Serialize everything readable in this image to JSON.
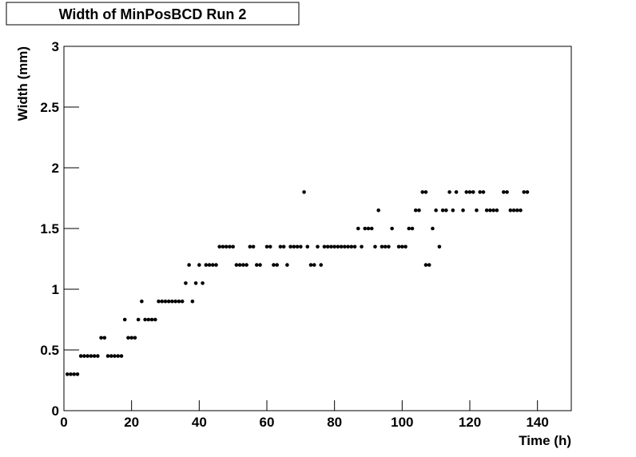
{
  "chart_data": {
    "type": "scatter",
    "title": "Width of MinPosBCD Run 2",
    "x_label": "Time (h)",
    "y_label": "Width (mm)",
    "xlim": [
      0,
      150
    ],
    "ylim": [
      0,
      3
    ],
    "xticks": [
      0,
      20,
      40,
      60,
      80,
      100,
      120,
      140
    ],
    "yticks": [
      0,
      0.5,
      1,
      1.5,
      2,
      2.5,
      3
    ],
    "color": "#000000",
    "x": [
      1,
      2,
      3,
      4,
      5,
      6,
      7,
      8,
      9,
      10,
      13,
      14,
      15,
      16,
      17,
      11,
      12,
      19,
      20,
      21,
      18,
      22,
      24,
      25,
      26,
      27,
      23,
      28,
      29,
      30,
      31,
      32,
      33,
      34,
      35,
      38,
      36,
      39,
      41,
      37,
      40,
      42,
      43,
      44,
      45,
      51,
      52,
      53,
      54,
      57,
      58,
      62,
      63,
      66,
      73,
      74,
      76,
      107,
      108,
      46,
      47,
      48,
      49,
      50,
      55,
      56,
      60,
      61,
      64,
      65,
      67,
      68,
      69,
      70,
      72,
      75,
      77,
      78,
      79,
      80,
      81,
      82,
      83,
      84,
      85,
      86,
      88,
      92,
      94,
      95,
      96,
      99,
      100,
      101,
      111,
      87,
      89,
      90,
      91,
      97,
      102,
      103,
      109,
      93,
      104,
      105,
      110,
      112,
      113,
      115,
      118,
      122,
      125,
      126,
      127,
      128,
      132,
      133,
      134,
      135,
      71,
      106,
      107,
      114,
      116,
      119,
      120,
      121,
      123,
      124,
      130,
      131,
      136,
      137
    ],
    "y": [
      0.3,
      0.3,
      0.3,
      0.3,
      0.45,
      0.45,
      0.45,
      0.45,
      0.45,
      0.45,
      0.45,
      0.45,
      0.45,
      0.45,
      0.45,
      0.6,
      0.6,
      0.6,
      0.6,
      0.6,
      0.75,
      0.75,
      0.75,
      0.75,
      0.75,
      0.75,
      0.9,
      0.9,
      0.9,
      0.9,
      0.9,
      0.9,
      0.9,
      0.9,
      0.9,
      0.9,
      1.05,
      1.05,
      1.05,
      1.2,
      1.2,
      1.2,
      1.2,
      1.2,
      1.2,
      1.2,
      1.2,
      1.2,
      1.2,
      1.2,
      1.2,
      1.2,
      1.2,
      1.2,
      1.2,
      1.2,
      1.2,
      1.2,
      1.2,
      1.35,
      1.35,
      1.35,
      1.35,
      1.35,
      1.35,
      1.35,
      1.35,
      1.35,
      1.35,
      1.35,
      1.35,
      1.35,
      1.35,
      1.35,
      1.35,
      1.35,
      1.35,
      1.35,
      1.35,
      1.35,
      1.35,
      1.35,
      1.35,
      1.35,
      1.35,
      1.35,
      1.35,
      1.35,
      1.35,
      1.35,
      1.35,
      1.35,
      1.35,
      1.35,
      1.35,
      1.5,
      1.5,
      1.5,
      1.5,
      1.5,
      1.5,
      1.5,
      1.5,
      1.65,
      1.65,
      1.65,
      1.65,
      1.65,
      1.65,
      1.65,
      1.65,
      1.65,
      1.65,
      1.65,
      1.65,
      1.65,
      1.65,
      1.65,
      1.65,
      1.65,
      1.8,
      1.8,
      1.8,
      1.8,
      1.8,
      1.8,
      1.8,
      1.8,
      1.8,
      1.8,
      1.8,
      1.8,
      1.8,
      1.8
    ]
  }
}
